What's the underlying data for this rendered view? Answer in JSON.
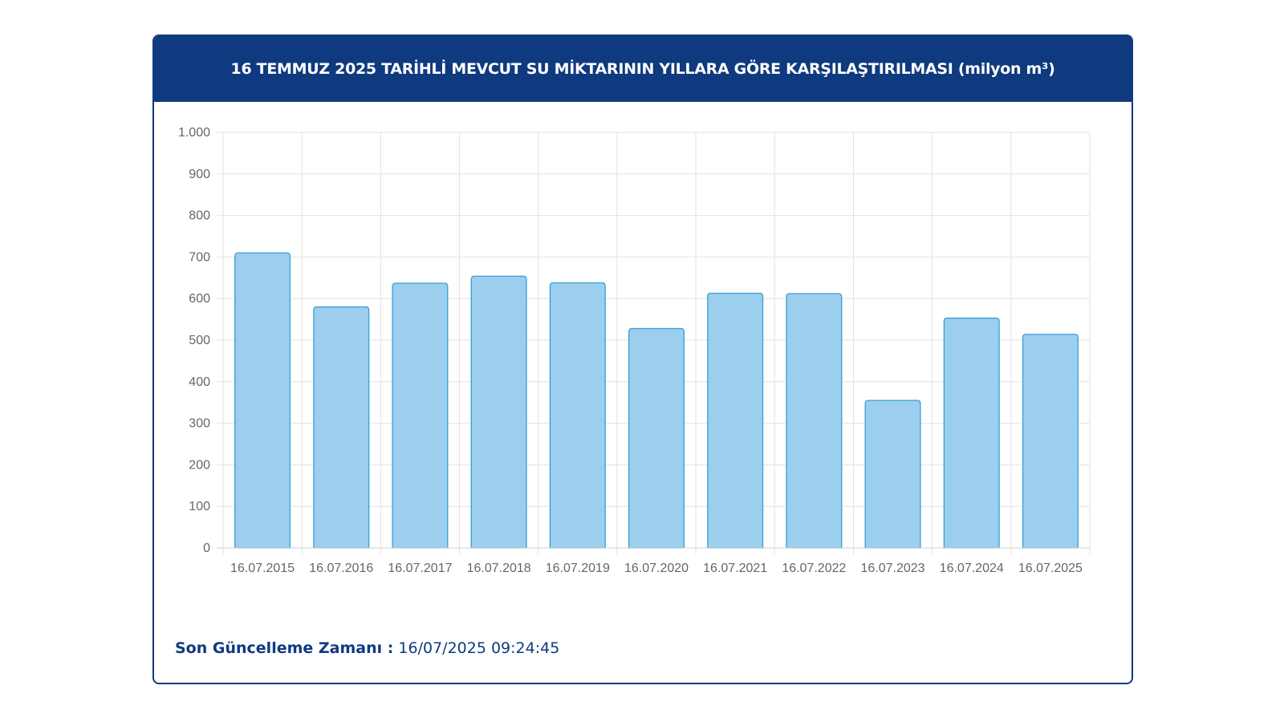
{
  "header": {
    "title": "16 TEMMUZ 2025 TARİHLİ MEVCUT SU MİKTARININ YILLARA GÖRE KARŞILAŞTIRILMASI (milyon m³)"
  },
  "footer": {
    "label": "Son Güncelleme Zamanı :",
    "value": "16/07/2025 09:24:45"
  },
  "colors": {
    "accent": "#0f3a7f",
    "bar_fill": "#9bcfed",
    "bar_stroke": "#3a9fd4",
    "grid": "#e2e2e2",
    "tick_text": "#666666"
  },
  "chart_data": {
    "type": "bar",
    "categories": [
      "16.07.2015",
      "16.07.2016",
      "16.07.2017",
      "16.07.2018",
      "16.07.2019",
      "16.07.2020",
      "16.07.2021",
      "16.07.2022",
      "16.07.2023",
      "16.07.2024",
      "16.07.2025"
    ],
    "values": [
      710,
      580,
      637,
      654,
      638,
      528,
      613,
      612,
      355,
      553,
      514
    ],
    "ylim": [
      0,
      1000
    ],
    "yticks": [
      0,
      100,
      200,
      300,
      400,
      500,
      600,
      700,
      800,
      900,
      1000
    ],
    "ytick_labels": [
      "0",
      "100",
      "200",
      "300",
      "400",
      "500",
      "600",
      "700",
      "800",
      "900",
      "1.000"
    ],
    "grid": true,
    "legend": "none"
  }
}
